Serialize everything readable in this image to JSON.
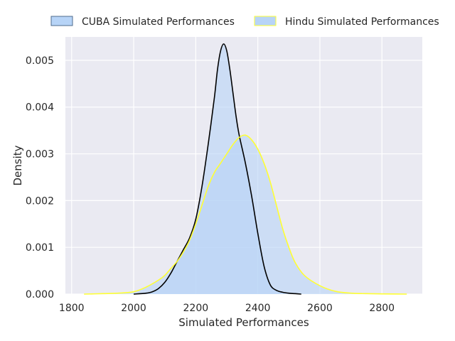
{
  "chart_data": {
    "type": "area",
    "title": "",
    "xlabel": "Simulated Performances",
    "ylabel": "Density",
    "xlim": [
      1780,
      2930
    ],
    "ylim": [
      0,
      0.0055
    ],
    "x_ticks": [
      1800,
      2000,
      2200,
      2400,
      2600,
      2800
    ],
    "y_ticks": [
      0.0,
      0.001,
      0.002,
      0.003,
      0.004,
      0.005
    ],
    "x_tick_labels": [
      "1800",
      "2000",
      "2200",
      "2400",
      "2600",
      "2800"
    ],
    "y_tick_labels": [
      "0.000",
      "0.001",
      "0.002",
      "0.003",
      "0.004",
      "0.005"
    ],
    "grid": true,
    "legend_placement": "top-center",
    "background": "#eaeaf2",
    "series": [
      {
        "name": "CUBA Simulated Performances",
        "line_color": "#000000",
        "fill_color": "#b7d4f7",
        "x": [
          2000,
          2040,
          2060,
          2080,
          2100,
          2120,
          2140,
          2160,
          2180,
          2200,
          2220,
          2240,
          2260,
          2270,
          2280,
          2290,
          2300,
          2310,
          2320,
          2330,
          2340,
          2360,
          2380,
          2400,
          2420,
          2440,
          2460,
          2480,
          2500,
          2520,
          2540
        ],
        "y": [
          0.0,
          2e-05,
          5e-05,
          0.00012,
          0.00025,
          0.00045,
          0.0007,
          0.00095,
          0.0012,
          0.0016,
          0.0023,
          0.0032,
          0.0042,
          0.0048,
          0.0052,
          0.00535,
          0.0052,
          0.0048,
          0.0043,
          0.0038,
          0.0034,
          0.0028,
          0.0021,
          0.0013,
          0.0006,
          0.0002,
          8e-05,
          4e-05,
          2e-05,
          1e-05,
          0.0
        ]
      },
      {
        "name": "Hindu Simulated Performances",
        "line_color": "#ffff33",
        "fill_color": "#b7d4f7",
        "x": [
          1840,
          1900,
          1950,
          2000,
          2040,
          2080,
          2100,
          2120,
          2140,
          2160,
          2180,
          2200,
          2220,
          2240,
          2260,
          2280,
          2300,
          2320,
          2340,
          2360,
          2380,
          2400,
          2420,
          2440,
          2460,
          2480,
          2500,
          2520,
          2550,
          2600,
          2650,
          2700,
          2750,
          2800,
          2880
        ],
        "y": [
          0.0,
          1e-05,
          2e-05,
          5e-05,
          0.00015,
          0.0003,
          0.0004,
          0.00055,
          0.0007,
          0.0009,
          0.00115,
          0.0015,
          0.0019,
          0.0023,
          0.0026,
          0.0028,
          0.003,
          0.0032,
          0.00335,
          0.0034,
          0.0033,
          0.0031,
          0.0028,
          0.0024,
          0.0019,
          0.0014,
          0.001,
          0.00068,
          0.0004,
          0.00018,
          6e-05,
          2e-05,
          1e-05,
          5e-06,
          0.0
        ]
      }
    ]
  }
}
